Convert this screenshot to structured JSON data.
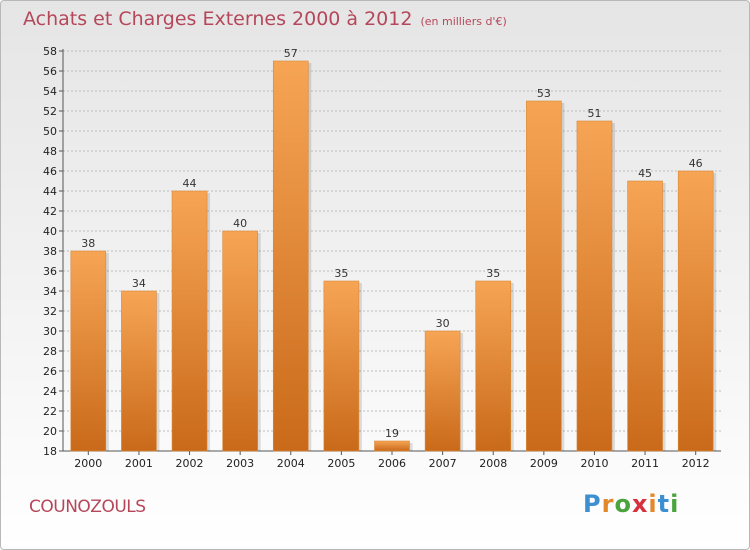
{
  "title": "Achats et Charges Externes 2000 à 2012",
  "unit_note": "(en milliers d'€)",
  "commune": "COUNOZOULS",
  "logo": "Proxiti",
  "colors": {
    "bar_light": "#f6a555",
    "bar_dark": "#c96a1a",
    "title": "#b5475a",
    "grid": "#bdbdbd"
  },
  "chart_data": {
    "type": "bar",
    "title": "Achats et Charges Externes 2000 à 2012",
    "subtitle": "(en milliers d'€)",
    "categories": [
      "2000",
      "2001",
      "2002",
      "2003",
      "2004",
      "2005",
      "2006",
      "2007",
      "2008",
      "2009",
      "2010",
      "2011",
      "2012"
    ],
    "values": [
      38,
      34,
      44,
      40,
      57,
      35,
      19,
      30,
      35,
      53,
      51,
      45,
      46
    ],
    "xlabel": "",
    "ylabel": "",
    "ylim": [
      18,
      58
    ],
    "yticks": [
      18,
      20,
      22,
      24,
      26,
      28,
      30,
      32,
      34,
      36,
      38,
      40,
      42,
      44,
      46,
      48,
      50,
      52,
      54,
      56,
      58
    ],
    "grid": "horizontal-dashed",
    "data_labels": true,
    "legend": "none"
  }
}
